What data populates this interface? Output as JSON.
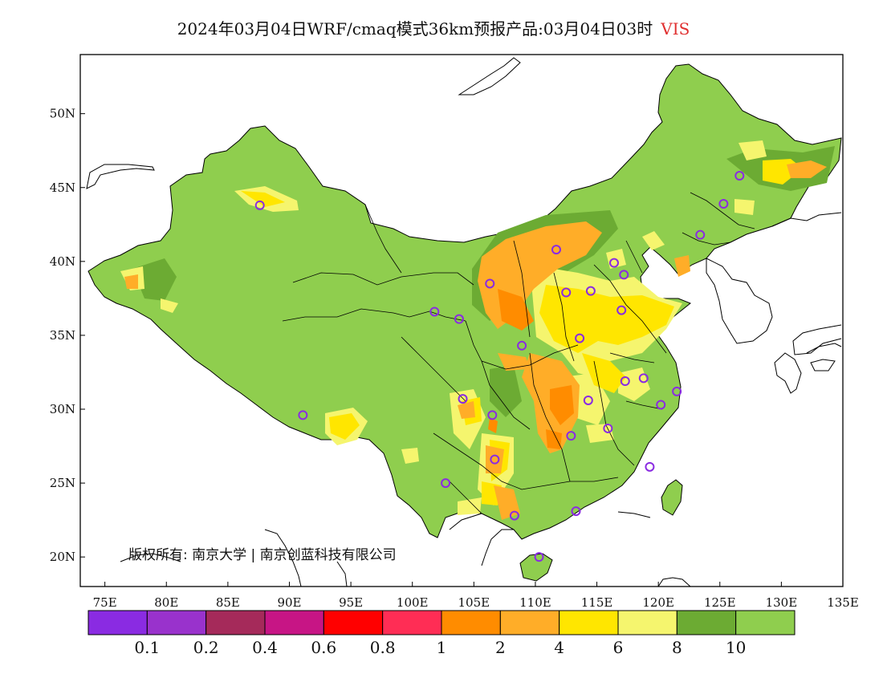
{
  "title": {
    "text": "2024年03月04日WRF/cmaq模式36km预报产品:03月04日03时",
    "variable": "VIS",
    "variable_color": "#e03030"
  },
  "axes": {
    "lon_labels": [
      "75E",
      "80E",
      "85E",
      "90E",
      "95E",
      "100E",
      "105E",
      "110E",
      "115E",
      "120E",
      "125E",
      "130E",
      "135E"
    ],
    "lat_labels": [
      "50N",
      "45N",
      "40N",
      "35N",
      "30N",
      "25N",
      "20N"
    ],
    "lon_range": [
      73,
      135
    ],
    "lat_range": [
      18,
      54
    ]
  },
  "copyright": {
    "line": "版权所有: 南京大学 | 南京创蓝科技有限公司"
  },
  "legend": {
    "bins": [
      {
        "color": "#8a2be2"
      },
      {
        "color": "#9932cc"
      },
      {
        "color": "#a52a5a"
      },
      {
        "color": "#c71585"
      },
      {
        "color": "#ff0000"
      },
      {
        "color": "#ff2d55"
      },
      {
        "color": "#ff8c00"
      },
      {
        "color": "#ffad28"
      },
      {
        "color": "#ffe600"
      },
      {
        "color": "#f5f56e"
      },
      {
        "color": "#6cab33"
      },
      {
        "color": "#8fce4e"
      }
    ],
    "labels": [
      "0.1",
      "0.2",
      "0.4",
      "0.6",
      "0.8",
      "1",
      "2",
      "4",
      "6",
      "8",
      "10"
    ]
  },
  "stations": [
    {
      "lon": 87.6,
      "lat": 43.8
    },
    {
      "lon": 91.1,
      "lat": 29.6
    },
    {
      "lon": 101.8,
      "lat": 36.6
    },
    {
      "lon": 103.8,
      "lat": 36.1
    },
    {
      "lon": 106.3,
      "lat": 38.5
    },
    {
      "lon": 111.7,
      "lat": 40.8
    },
    {
      "lon": 112.5,
      "lat": 37.9
    },
    {
      "lon": 114.5,
      "lat": 38.0
    },
    {
      "lon": 116.4,
      "lat": 39.9
    },
    {
      "lon": 117.2,
      "lat": 39.1
    },
    {
      "lon": 117.0,
      "lat": 36.7
    },
    {
      "lon": 113.6,
      "lat": 34.8
    },
    {
      "lon": 108.9,
      "lat": 34.3
    },
    {
      "lon": 104.1,
      "lat": 30.7
    },
    {
      "lon": 106.5,
      "lat": 29.6
    },
    {
      "lon": 106.7,
      "lat": 26.6
    },
    {
      "lon": 102.7,
      "lat": 25.0
    },
    {
      "lon": 108.3,
      "lat": 22.8
    },
    {
      "lon": 113.3,
      "lat": 23.1
    },
    {
      "lon": 110.3,
      "lat": 20.0
    },
    {
      "lon": 112.9,
      "lat": 28.2
    },
    {
      "lon": 114.3,
      "lat": 30.6
    },
    {
      "lon": 115.9,
      "lat": 28.7
    },
    {
      "lon": 117.3,
      "lat": 31.9
    },
    {
      "lon": 118.8,
      "lat": 32.1
    },
    {
      "lon": 120.2,
      "lat": 30.3
    },
    {
      "lon": 121.5,
      "lat": 31.2
    },
    {
      "lon": 119.3,
      "lat": 26.1
    },
    {
      "lon": 123.4,
      "lat": 41.8
    },
    {
      "lon": 125.3,
      "lat": 43.9
    },
    {
      "lon": 126.6,
      "lat": 45.8
    }
  ]
}
